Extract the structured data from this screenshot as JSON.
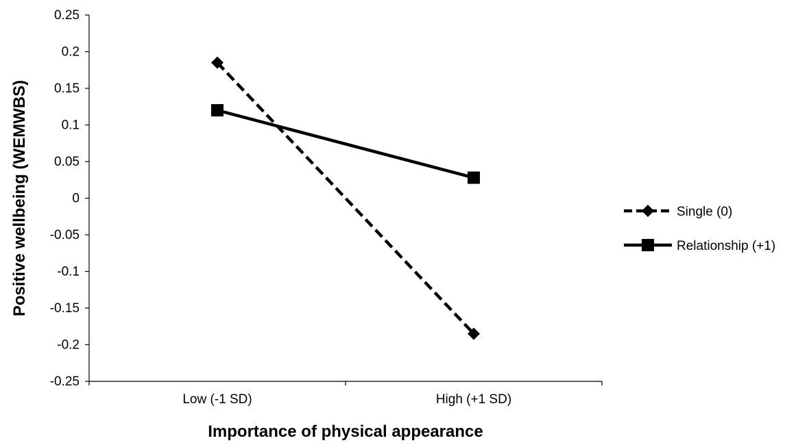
{
  "chart_data": {
    "type": "line",
    "title": "",
    "xlabel": "Importance of physical appearance",
    "ylabel": "Positive wellbeing (WEMWBS)",
    "categories": [
      "Low (-1 SD)",
      "High (+1 SD)"
    ],
    "ylim": [
      -0.25,
      0.25
    ],
    "yticks": [
      0.25,
      0.2,
      0.15,
      0.1,
      0.05,
      0,
      -0.05,
      -0.1,
      -0.15,
      -0.2,
      -0.25
    ],
    "ytick_labels": [
      "0.25",
      "0.2",
      "0.15",
      "0.1",
      "0.05",
      "0",
      "-0.05",
      "-0.1",
      "-0.15",
      "-0.2",
      "-0.25"
    ],
    "grid": false,
    "legend_position": "right",
    "series": [
      {
        "name": "Single (0)",
        "values": [
          0.185,
          -0.185
        ],
        "line_style": "dashed",
        "marker": "diamond",
        "color": "#000000"
      },
      {
        "name": "Relationship (+1)",
        "values": [
          0.12,
          0.028
        ],
        "line_style": "solid",
        "marker": "square",
        "color": "#000000"
      }
    ]
  }
}
